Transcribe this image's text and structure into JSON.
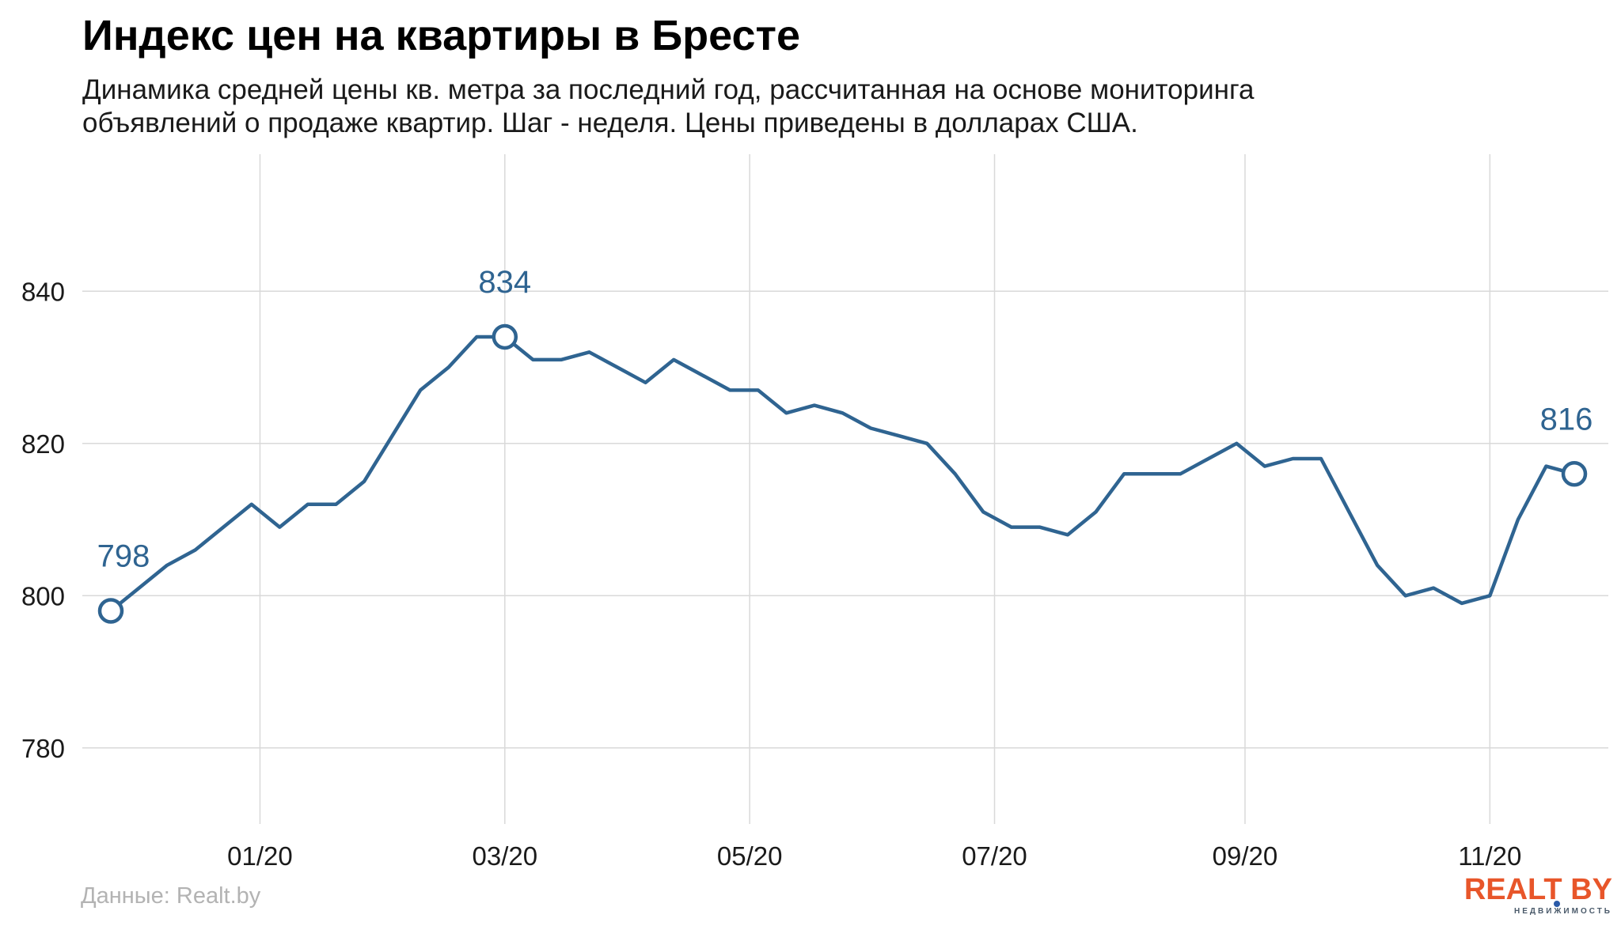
{
  "chart_data": {
    "type": "line",
    "title": "Индекс цен на квартиры в Бресте",
    "subtitle_lines": [
      "Динамика средней цены кв. метра за последний год, рассчитанная на основе мониторинга",
      "объявлений о продаже квартир. Шаг - неделя. Цены приведены в долларах США."
    ],
    "caption": "Данные: Realt.by",
    "ylim": [
      770,
      858
    ],
    "yticks": [
      780,
      800,
      820,
      840
    ],
    "xticks": [
      {
        "label": "01/20",
        "week": 5.3
      },
      {
        "label": "03/20",
        "week": 14.0
      },
      {
        "label": "05/20",
        "week": 22.7
      },
      {
        "label": "07/20",
        "week": 31.4
      },
      {
        "label": "09/20",
        "week": 40.3
      },
      {
        "label": "11/20",
        "week": 49.0
      }
    ],
    "grid": true,
    "line_color": "#2f6491",
    "series": [
      {
        "values": [
          798,
          801,
          804,
          806,
          809,
          812,
          809,
          812,
          812,
          815,
          821,
          827,
          830,
          834,
          834,
          831,
          831,
          832,
          830,
          828,
          831,
          829,
          827,
          827,
          824,
          825,
          824,
          822,
          821,
          820,
          816,
          811,
          809,
          809,
          808,
          811,
          816,
          816,
          816,
          818,
          820,
          817,
          818,
          818,
          811,
          804,
          800,
          801,
          799,
          800,
          810,
          817,
          816
        ]
      }
    ],
    "annotations": [
      {
        "week": 0,
        "value": 798,
        "label": "798"
      },
      {
        "week": 14,
        "value": 834,
        "label": "834"
      },
      {
        "week": 52,
        "value": 816,
        "label": "816"
      }
    ]
  },
  "logo": {
    "text": "REALT BY",
    "subtext": "НЕДВИЖИМОСТЬ",
    "color": "#e8562a"
  }
}
